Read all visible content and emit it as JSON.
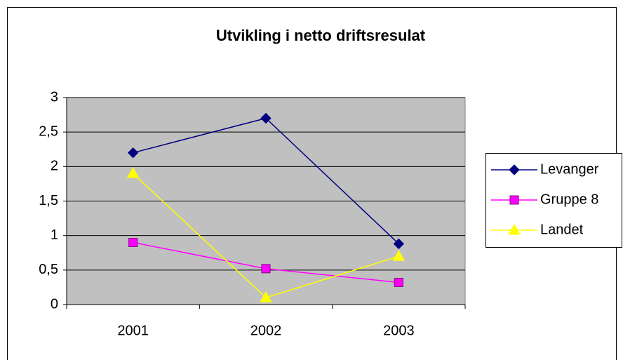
{
  "chart_data": {
    "type": "line",
    "title": "Utvikling i netto driftsresulat",
    "categories": [
      "2001",
      "2002",
      "2003"
    ],
    "series": [
      {
        "name": "Levanger",
        "color": "#000080",
        "marker": "diamond",
        "values": [
          2.2,
          2.7,
          0.88
        ]
      },
      {
        "name": "Gruppe 8",
        "color": "#ff00ff",
        "marker": "square",
        "values": [
          0.9,
          0.52,
          0.32
        ]
      },
      {
        "name": "Landet",
        "color": "#ffff00",
        "marker": "triangle",
        "values": [
          1.9,
          0.1,
          0.7
        ]
      }
    ],
    "ylim": [
      0,
      3
    ],
    "yticks": [
      0,
      {
        "value": 0.5,
        "label": "0,5"
      },
      1,
      {
        "value": 1.5,
        "label": "1,5"
      },
      2,
      {
        "value": 2.5,
        "label": "2,5"
      },
      3
    ],
    "grid": true,
    "plot_background": "#c0c0c0",
    "legend": "right"
  }
}
